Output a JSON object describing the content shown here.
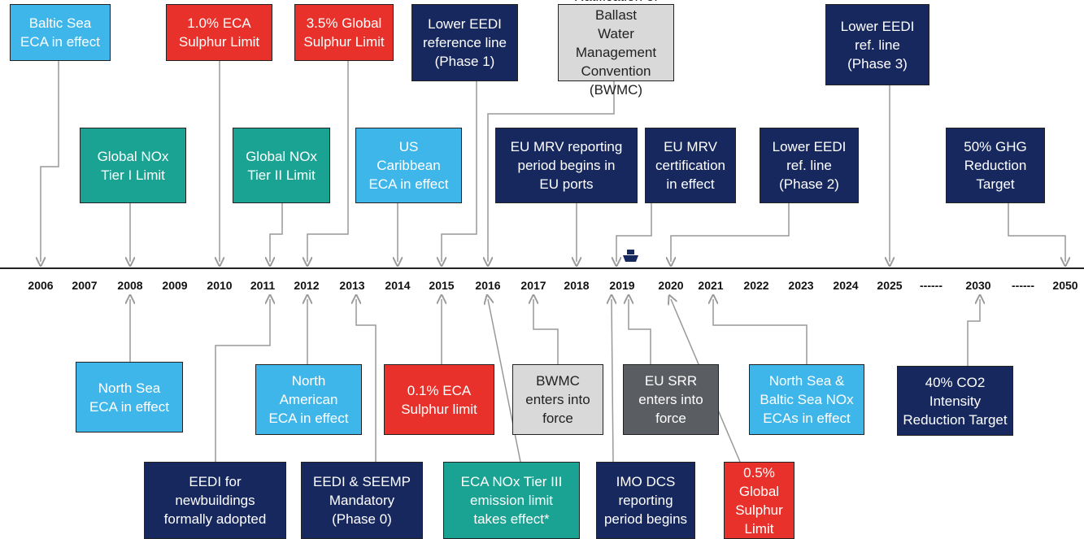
{
  "axis_labels": [
    "2006",
    "2007",
    "2008",
    "2009",
    "2010",
    "2011",
    "2012",
    "2013",
    "2014",
    "2015",
    "2016",
    "2017",
    "2018",
    "2019",
    "2020",
    "2021",
    "2022",
    "2023",
    "2024",
    "2025",
    "------",
    "2030",
    "------",
    "2050"
  ],
  "nodes": [
    {
      "lines": [
        "Baltic Sea",
        "ECA in effect"
      ],
      "color": "#3fb6ea"
    },
    {
      "lines": [
        "Global NOx",
        "Tier I Limit"
      ],
      "color": "#1aa393"
    },
    {
      "lines": [
        "1.0% ECA",
        "Sulphur Limit"
      ],
      "color": "#e8312a"
    },
    {
      "lines": [
        "Global NOx",
        "Tier II Limit"
      ],
      "color": "#1aa393"
    },
    {
      "lines": [
        "3.5% Global",
        "Sulphur Limit"
      ],
      "color": "#e8312a"
    },
    {
      "lines": [
        "US",
        "Caribbean",
        "ECA in effect"
      ],
      "color": "#3fb6ea"
    },
    {
      "lines": [
        "Lower EEDI",
        "reference line",
        "(Phase 1)"
      ],
      "color": "#16285e"
    },
    {
      "lines": [
        "Ratification of Ballast",
        "Water Management",
        "Convention (BWMC)"
      ],
      "color": "#d9d9d9"
    },
    {
      "lines": [
        "EU MRV reporting",
        "period begins in",
        "EU ports"
      ],
      "color": "#16285e"
    },
    {
      "lines": [
        "EU MRV",
        "certification",
        "in effect"
      ],
      "color": "#16285e"
    },
    {
      "lines": [
        "Lower EEDI",
        "ref. line",
        "(Phase 2)"
      ],
      "color": "#16285e"
    },
    {
      "lines": [
        "Lower EEDI",
        "ref. line",
        "(Phase 3)"
      ],
      "color": "#16285e"
    },
    {
      "lines": [
        "50% GHG",
        "Reduction",
        "Target"
      ],
      "color": "#16285e"
    },
    {
      "lines": [
        "North Sea",
        "ECA in effect"
      ],
      "color": "#3fb6ea"
    },
    {
      "lines": [
        "EEDI for",
        "newbuildings",
        "formally adopted"
      ],
      "color": "#16285e"
    },
    {
      "lines": [
        "North",
        "American",
        "ECA in effect"
      ],
      "color": "#3fb6ea"
    },
    {
      "lines": [
        "EEDI & SEEMP",
        "Mandatory",
        "(Phase 0)"
      ],
      "color": "#16285e"
    },
    {
      "lines": [
        "0.1% ECA",
        "Sulphur limit"
      ],
      "color": "#e8312a"
    },
    {
      "lines": [
        "ECA NOx Tier III",
        "emission limit",
        "takes effect*"
      ],
      "color": "#1aa393"
    },
    {
      "lines": [
        "BWMC",
        "enters into",
        "force"
      ],
      "color": "#d9d9d9"
    },
    {
      "lines": [
        "IMO DCS",
        "reporting",
        "period begins"
      ],
      "color": "#16285e"
    },
    {
      "lines": [
        "EU SRR",
        "enters into",
        "force"
      ],
      "color": "#5a5d62"
    },
    {
      "lines": [
        "0.5% Global",
        "Sulphur",
        "Limit"
      ],
      "color": "#e8312a"
    },
    {
      "lines": [
        "North Sea &",
        "Baltic Sea NOx",
        "ECAs in effect"
      ],
      "color": "#3fb6ea"
    },
    {
      "lines": [
        "40% CO2",
        "Intensity",
        "Reduction Target"
      ],
      "color": "#16285e"
    }
  ]
}
